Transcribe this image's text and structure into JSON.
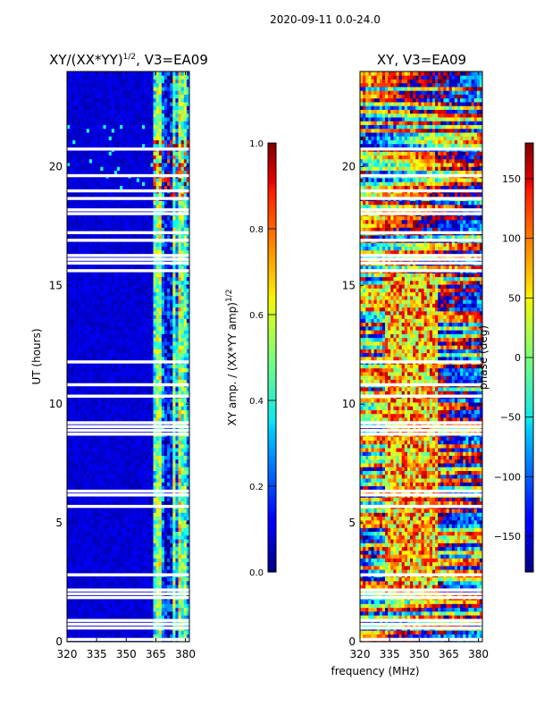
{
  "chart_data": [
    {
      "type": "heatmap",
      "suptitle": "2020-09-11 0.0-24.0",
      "title_main": "XY/(XX*YY)",
      "title_exp": "1/2",
      "title_suffix": ", V3=EA09",
      "xlabel": "",
      "ylabel": "UT (hours)",
      "xlim": [
        320,
        382
      ],
      "ylim": [
        0,
        24
      ],
      "xticks": [
        "320",
        "335",
        "350",
        "365",
        "380"
      ],
      "xtick_values": [
        320,
        335,
        350,
        365,
        380
      ],
      "yticks": [
        "0",
        "5",
        "10",
        "15",
        "20"
      ],
      "ytick_values": [
        0,
        5,
        10,
        15,
        20
      ],
      "colorbar": {
        "label_main": "XY amp. / (XX*YY amp)",
        "label_exp": "1/2",
        "range": [
          0.0,
          1.0
        ],
        "ticks": [
          "0.0",
          "0.2",
          "0.4",
          "0.6",
          "0.8",
          "1.0"
        ],
        "tick_values": [
          0.0,
          0.2,
          0.4,
          0.6,
          0.8,
          1.0
        ]
      },
      "colormap": "jet"
    },
    {
      "type": "heatmap",
      "title": "XY, V3=EA09",
      "xlabel": "frequency (MHz)",
      "ylabel": "",
      "xlim": [
        320,
        382
      ],
      "ylim": [
        0,
        24
      ],
      "xticks": [
        "320",
        "335",
        "350",
        "365",
        "380"
      ],
      "xtick_values": [
        320,
        335,
        350,
        365,
        380
      ],
      "yticks": [
        "0",
        "5",
        "10",
        "15",
        "20"
      ],
      "ytick_values": [
        0,
        5,
        10,
        15,
        20
      ],
      "colorbar": {
        "label": "phase (deg)",
        "range": [
          -180,
          180
        ],
        "ticks": [
          "−150",
          "−100",
          "−50",
          "0",
          "50",
          "100",
          "150"
        ],
        "tick_values": [
          -150,
          -100,
          -50,
          0,
          50,
          100,
          150
        ]
      },
      "colormap": "jet"
    }
  ]
}
